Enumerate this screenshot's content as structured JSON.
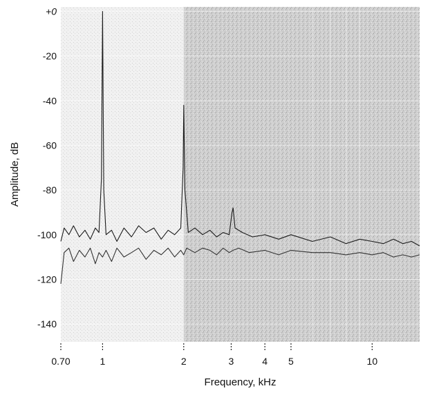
{
  "chart_data": {
    "type": "line",
    "xlabel": "Frequency, kHz",
    "ylabel": "Amplitude, dB",
    "x_scale": "log",
    "xlim": [
      0.7,
      15
    ],
    "ylim": [
      -148,
      2
    ],
    "x_ticks": [
      0.7,
      1,
      2,
      3,
      4,
      5,
      10
    ],
    "x_tick_labels": [
      "0.70",
      "1",
      "2",
      "3",
      "4",
      "5",
      "10"
    ],
    "y_ticks": [
      0,
      -20,
      -40,
      -60,
      -80,
      -100,
      -120,
      -140
    ],
    "y_tick_labels": [
      "+0",
      "-20",
      "-40",
      "-60",
      "-80",
      "-100",
      "-120",
      "-140"
    ],
    "grid": true,
    "shaded_region_start_khz": 2,
    "series": [
      {
        "stroke": "#1a1a1a",
        "x": [
          0.7,
          0.72,
          0.75,
          0.78,
          0.82,
          0.86,
          0.9,
          0.94,
          0.97,
          0.99,
          1.0,
          1.01,
          1.03,
          1.08,
          1.13,
          1.2,
          1.28,
          1.36,
          1.45,
          1.55,
          1.65,
          1.75,
          1.85,
          1.95,
          1.99,
          2.0,
          2.02,
          2.08,
          2.2,
          2.35,
          2.5,
          2.65,
          2.8,
          2.95,
          3.02,
          3.05,
          3.1,
          3.3,
          3.6,
          4.0,
          4.5,
          5.0,
          6.0,
          7.0,
          8.0,
          9.0,
          10.0,
          11.0,
          12.0,
          13.0,
          14.0,
          15.0
        ],
        "y": [
          -103,
          -97,
          -100,
          -96,
          -101,
          -98,
          -102,
          -97,
          -99,
          -75,
          0,
          -80,
          -100,
          -98,
          -103,
          -97,
          -101,
          -96,
          -99,
          -97,
          -102,
          -98,
          -100,
          -97,
          -70,
          -42,
          -80,
          -99,
          -97,
          -100,
          -98,
          -101,
          -99,
          -100,
          -90,
          -88,
          -97,
          -99,
          -101,
          -100,
          -102,
          -100,
          -103,
          -101,
          -104,
          -102,
          -103,
          -104,
          -102,
          -104,
          -103,
          -105
        ]
      },
      {
        "stroke": "#333333",
        "x": [
          0.7,
          0.72,
          0.75,
          0.78,
          0.82,
          0.86,
          0.9,
          0.94,
          0.97,
          1.0,
          1.03,
          1.08,
          1.13,
          1.2,
          1.28,
          1.36,
          1.45,
          1.55,
          1.65,
          1.75,
          1.85,
          1.95,
          2.0,
          2.05,
          2.2,
          2.35,
          2.5,
          2.65,
          2.8,
          2.95,
          3.05,
          3.2,
          3.5,
          4.0,
          4.5,
          5.0,
          6.0,
          7.0,
          8.0,
          9.0,
          10.0,
          11.0,
          12.0,
          13.0,
          14.0,
          15.0
        ],
        "y": [
          -122,
          -108,
          -106,
          -112,
          -107,
          -110,
          -106,
          -113,
          -108,
          -110,
          -107,
          -112,
          -106,
          -110,
          -108,
          -106,
          -111,
          -107,
          -109,
          -106,
          -110,
          -107,
          -109,
          -106,
          -108,
          -106,
          -107,
          -109,
          -106,
          -108,
          -107,
          -106,
          -108,
          -107,
          -109,
          -107,
          -108,
          -108,
          -109,
          -108,
          -109,
          -108,
          -110,
          -109,
          -110,
          -109
        ]
      }
    ]
  }
}
